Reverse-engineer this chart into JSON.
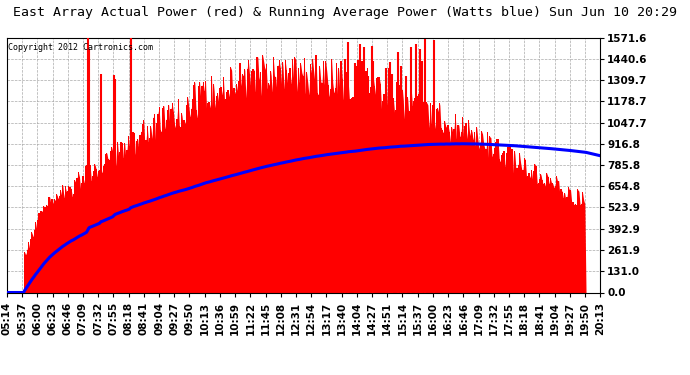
{
  "title": "East Array Actual Power (red) & Running Average Power (Watts blue) Sun Jun 10 20:29",
  "copyright": "Copyright 2012 Cartronics.com",
  "yticks": [
    0.0,
    131.0,
    261.9,
    392.9,
    523.9,
    654.8,
    785.8,
    916.8,
    1047.7,
    1178.7,
    1309.7,
    1440.6,
    1571.6
  ],
  "ymax": 1571.6,
  "xtick_labels": [
    "05:14",
    "05:37",
    "06:00",
    "06:23",
    "06:46",
    "07:09",
    "07:32",
    "07:55",
    "08:18",
    "08:41",
    "09:04",
    "09:27",
    "09:50",
    "10:13",
    "10:36",
    "10:59",
    "11:22",
    "11:45",
    "12:08",
    "12:31",
    "12:54",
    "13:17",
    "13:40",
    "14:04",
    "14:27",
    "14:51",
    "15:14",
    "15:37",
    "16:00",
    "16:23",
    "16:46",
    "17:09",
    "17:32",
    "17:55",
    "18:18",
    "18:41",
    "19:04",
    "19:27",
    "19:50",
    "20:13"
  ],
  "bar_color": "#ff0000",
  "avg_color": "#0000ff",
  "background_color": "#ffffff",
  "grid_color": "#aaaaaa",
  "title_fontsize": 9.5,
  "tick_fontsize": 7.5,
  "fig_width": 6.9,
  "fig_height": 3.75,
  "dpi": 100
}
